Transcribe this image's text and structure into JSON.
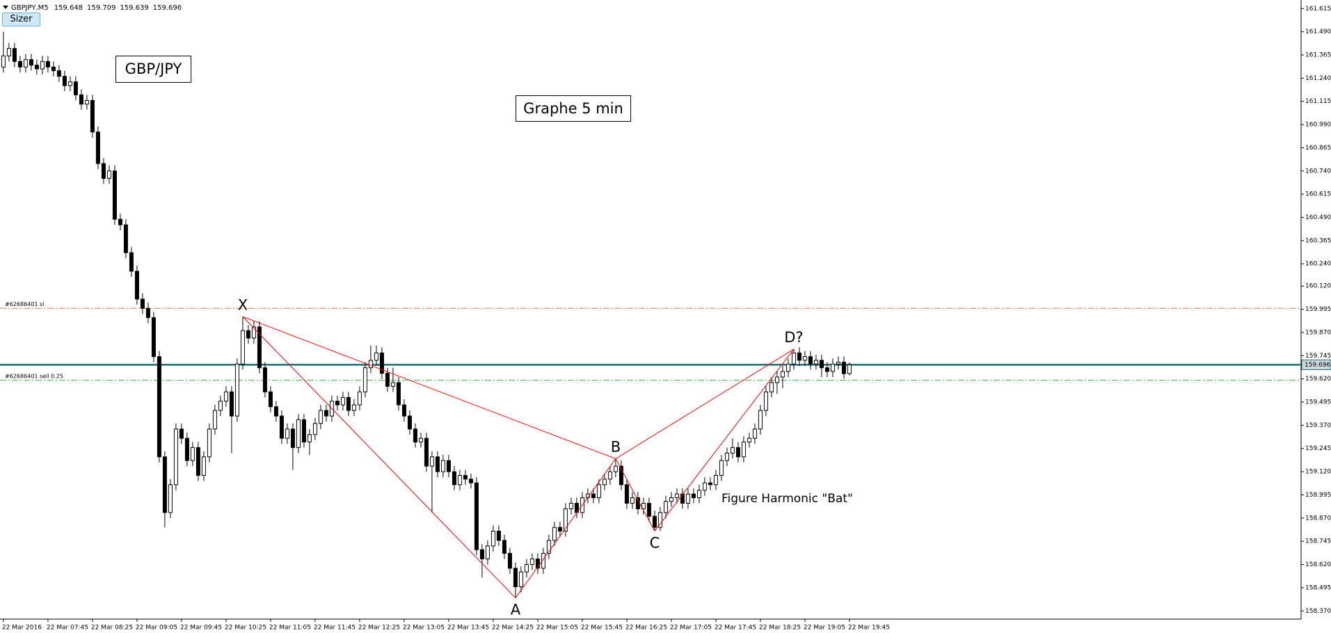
{
  "button": "Sizer",
  "chart_data": {
    "type": "candlestick",
    "symbol": "GBPJPY,M5",
    "annotations": [
      "GBP/JPY",
      "Graphe 5 min",
      "Figure Harmonic \"Bat\""
    ],
    "up_color": "#ffffff",
    "down_color": "#000000",
    "wick_color": "#000000",
    "current_color": "#1b6f74",
    "ylim": [
      158.326,
      161.661
    ],
    "yticks": [
      161.615,
      {
        "value": 161.49,
        "label": "161.490"
      },
      161.365,
      {
        "value": 161.24,
        "label": "161.240"
      },
      161.115,
      {
        "value": 160.99,
        "label": "160.990"
      },
      160.865,
      {
        "value": 160.74,
        "label": "160.740"
      },
      160.615,
      {
        "value": 160.49,
        "label": "160.490"
      },
      160.365,
      {
        "value": 160.24,
        "label": "160.240"
      },
      {
        "value": 160.12,
        "label": "160.120"
      },
      159.995,
      {
        "value": 159.87,
        "label": "159.870"
      },
      159.745,
      {
        "value": 159.62,
        "label": "159.620"
      },
      159.495,
      {
        "value": 159.37,
        "label": "159.370"
      },
      159.245,
      {
        "value": 159.12,
        "label": "159.120"
      },
      158.995,
      {
        "value": 158.87,
        "label": "158.870"
      },
      158.745,
      {
        "value": 158.62,
        "label": "158.620"
      },
      158.495,
      {
        "value": 158.37,
        "label": "158.370"
      }
    ],
    "categories": [
      "22 Mar 2016",
      null,
      null,
      null,
      null,
      null,
      null,
      null,
      "22 Mar 07:45",
      null,
      null,
      null,
      null,
      null,
      null,
      null,
      "22 Mar 08:25",
      null,
      null,
      null,
      null,
      null,
      null,
      null,
      "22 Mar 09:05",
      null,
      null,
      null,
      null,
      null,
      null,
      null,
      "22 Mar 09:45",
      null,
      null,
      null,
      null,
      null,
      null,
      null,
      "22 Mar 10:25",
      null,
      null,
      null,
      null,
      null,
      null,
      null,
      "22 Mar 11:05",
      null,
      null,
      null,
      null,
      null,
      null,
      null,
      "22 Mar 11:45",
      null,
      null,
      null,
      null,
      null,
      null,
      null,
      "22 Mar 12:25",
      null,
      null,
      null,
      null,
      null,
      null,
      null,
      "22 Mar 13:05",
      null,
      null,
      null,
      null,
      null,
      null,
      null,
      "22 Mar 13:45",
      null,
      null,
      null,
      null,
      null,
      null,
      null,
      "22 Mar 14:25",
      null,
      null,
      null,
      null,
      null,
      null,
      null,
      "22 Mar 15:05",
      null,
      null,
      null,
      null,
      null,
      null,
      null,
      "22 Mar 15:45",
      null,
      null,
      null,
      null,
      null,
      null,
      null,
      "22 Mar 16:25",
      null,
      null,
      null,
      null,
      null,
      null,
      null,
      "22 Mar 17:05",
      null,
      null,
      null,
      null,
      null,
      null,
      null,
      "22 Mar 17:45",
      null,
      null,
      null,
      null,
      null,
      null,
      null,
      "22 Mar 18:25",
      null,
      null,
      null,
      null,
      null,
      null,
      null,
      "22 Mar 19:05",
      null,
      null,
      null,
      null,
      null,
      null,
      null,
      "22 Mar 19:45"
    ],
    "ohlc": [
      [
        161.3,
        161.49,
        161.27,
        161.36
      ],
      [
        161.36,
        161.43,
        161.33,
        161.4
      ],
      [
        161.4,
        161.43,
        161.3,
        161.33
      ],
      [
        161.33,
        161.36,
        161.27,
        161.3
      ],
      [
        161.3,
        161.37,
        161.27,
        161.34
      ],
      [
        161.34,
        161.37,
        161.28,
        161.31
      ],
      [
        161.31,
        161.34,
        161.26,
        161.29
      ],
      [
        161.29,
        161.36,
        161.26,
        161.33
      ],
      [
        161.33,
        161.36,
        161.27,
        161.3
      ],
      [
        161.3,
        161.33,
        161.25,
        161.28
      ],
      [
        161.28,
        161.31,
        161.22,
        161.25
      ],
      [
        161.25,
        161.28,
        161.17,
        161.2
      ],
      [
        161.2,
        161.25,
        161.17,
        161.22
      ],
      [
        161.22,
        161.25,
        161.12,
        161.15
      ],
      [
        161.15,
        161.18,
        161.07,
        161.1
      ],
      [
        161.1,
        161.15,
        161.07,
        161.12
      ],
      [
        161.12,
        161.15,
        160.92,
        160.95
      ],
      [
        160.95,
        160.98,
        160.75,
        160.78
      ],
      [
        160.78,
        160.81,
        160.67,
        160.7
      ],
      [
        160.7,
        160.77,
        160.67,
        160.74
      ],
      [
        160.74,
        160.77,
        160.45,
        160.48
      ],
      [
        160.48,
        160.51,
        160.42,
        160.45
      ],
      [
        160.45,
        160.48,
        160.27,
        160.3
      ],
      [
        160.3,
        160.33,
        160.17,
        160.2
      ],
      [
        160.2,
        160.23,
        160.02,
        160.05
      ],
      [
        160.05,
        160.08,
        159.97,
        160.0
      ],
      [
        160.0,
        160.03,
        159.92,
        159.95
      ],
      [
        159.95,
        159.98,
        159.71,
        159.74
      ],
      [
        159.74,
        159.77,
        159.17,
        159.2
      ],
      [
        159.2,
        159.23,
        158.82,
        158.9
      ],
      [
        158.9,
        159.08,
        158.87,
        159.05
      ],
      [
        159.05,
        159.38,
        159.02,
        159.35
      ],
      [
        159.35,
        159.38,
        159.27,
        159.3
      ],
      [
        159.3,
        159.33,
        159.15,
        159.18
      ],
      [
        159.18,
        159.28,
        159.15,
        159.25
      ],
      [
        159.25,
        159.28,
        159.07,
        159.1
      ],
      [
        159.1,
        159.23,
        159.07,
        159.2
      ],
      [
        159.2,
        159.38,
        159.17,
        159.35
      ],
      [
        159.35,
        159.48,
        159.32,
        159.45
      ],
      [
        159.45,
        159.53,
        159.42,
        159.5
      ],
      [
        159.5,
        159.58,
        159.47,
        159.55
      ],
      [
        159.55,
        159.58,
        159.22,
        159.42
      ],
      [
        159.42,
        159.73,
        159.39,
        159.7
      ],
      [
        159.7,
        159.955,
        159.67,
        159.88
      ],
      [
        159.88,
        159.91,
        159.81,
        159.84
      ],
      [
        159.84,
        159.93,
        159.81,
        159.9
      ],
      [
        159.9,
        159.93,
        159.65,
        159.68
      ],
      [
        159.68,
        159.71,
        159.52,
        159.55
      ],
      [
        159.55,
        159.58,
        159.44,
        159.47
      ],
      [
        159.47,
        159.5,
        159.39,
        159.42
      ],
      [
        159.42,
        159.45,
        159.27,
        159.3
      ],
      [
        159.3,
        159.38,
        159.27,
        159.35
      ],
      [
        159.35,
        159.38,
        159.13,
        159.25
      ],
      [
        159.25,
        159.43,
        159.22,
        159.4
      ],
      [
        159.4,
        159.43,
        159.25,
        159.28
      ],
      [
        159.28,
        159.35,
        159.21,
        159.32
      ],
      [
        159.32,
        159.41,
        159.29,
        159.38
      ],
      [
        159.38,
        159.48,
        159.35,
        159.45
      ],
      [
        159.45,
        159.48,
        159.39,
        159.42
      ],
      [
        159.42,
        159.53,
        159.39,
        159.5
      ],
      [
        159.5,
        159.53,
        159.45,
        159.48
      ],
      [
        159.48,
        159.55,
        159.45,
        159.52
      ],
      [
        159.52,
        159.55,
        159.42,
        159.45
      ],
      [
        159.45,
        159.51,
        159.42,
        159.48
      ],
      [
        159.48,
        159.58,
        159.45,
        159.55
      ],
      [
        159.55,
        159.71,
        159.52,
        159.68
      ],
      [
        159.68,
        159.8,
        159.65,
        159.72
      ],
      [
        159.72,
        159.8,
        159.69,
        159.76
      ],
      [
        159.76,
        159.79,
        159.62,
        159.65
      ],
      [
        159.65,
        159.68,
        159.55,
        159.58
      ],
      [
        159.58,
        159.68,
        159.55,
        159.6
      ],
      [
        159.6,
        159.63,
        159.45,
        159.48
      ],
      [
        159.48,
        159.51,
        159.39,
        159.42
      ],
      [
        159.42,
        159.45,
        159.32,
        159.35
      ],
      [
        159.35,
        159.38,
        159.25,
        159.28
      ],
      [
        159.28,
        159.33,
        159.25,
        159.3
      ],
      [
        159.3,
        159.33,
        159.12,
        159.15
      ],
      [
        159.15,
        159.23,
        158.9,
        159.2
      ],
      [
        159.2,
        159.23,
        159.09,
        159.12
      ],
      [
        159.12,
        159.21,
        159.09,
        159.18
      ],
      [
        159.18,
        159.21,
        159.09,
        159.12
      ],
      [
        159.12,
        159.15,
        159.02,
        159.05
      ],
      [
        159.05,
        159.13,
        159.02,
        159.1
      ],
      [
        159.1,
        159.13,
        159.05,
        159.08
      ],
      [
        159.08,
        159.11,
        159.03,
        159.06
      ],
      [
        159.06,
        159.09,
        158.67,
        158.7
      ],
      [
        158.7,
        158.73,
        158.55,
        158.65
      ],
      [
        158.65,
        158.75,
        158.62,
        158.72
      ],
      [
        158.72,
        158.83,
        158.69,
        158.8
      ],
      [
        158.8,
        158.83,
        158.72,
        158.75
      ],
      [
        158.75,
        158.78,
        158.65,
        158.68
      ],
      [
        158.68,
        158.71,
        158.57,
        158.6
      ],
      [
        158.6,
        158.63,
        158.44,
        158.5
      ],
      [
        158.5,
        158.61,
        158.47,
        158.58
      ],
      [
        158.58,
        158.65,
        158.55,
        158.62
      ],
      [
        158.62,
        158.68,
        158.59,
        158.65
      ],
      [
        158.65,
        158.68,
        158.57,
        158.6
      ],
      [
        158.6,
        158.71,
        158.57,
        158.68
      ],
      [
        158.68,
        158.78,
        158.65,
        158.75
      ],
      [
        158.75,
        158.85,
        158.72,
        158.82
      ],
      [
        158.82,
        158.85,
        158.77,
        158.8
      ],
      [
        158.8,
        158.95,
        158.77,
        158.92
      ],
      [
        158.92,
        158.98,
        158.89,
        158.95
      ],
      [
        158.95,
        158.98,
        158.87,
        158.9
      ],
      [
        158.9,
        159.01,
        158.87,
        158.98
      ],
      [
        158.98,
        159.03,
        158.95,
        159.0
      ],
      [
        159.0,
        159.03,
        158.95,
        158.98
      ],
      [
        158.98,
        159.08,
        158.95,
        159.05
      ],
      [
        159.05,
        159.11,
        159.02,
        159.08
      ],
      [
        159.08,
        159.15,
        159.05,
        159.12
      ],
      [
        159.12,
        159.19,
        159.09,
        159.15
      ],
      [
        159.15,
        159.18,
        159.02,
        159.05
      ],
      [
        159.05,
        159.08,
        158.92,
        158.95
      ],
      [
        158.95,
        159.01,
        158.92,
        158.98
      ],
      [
        158.98,
        159.01,
        158.89,
        158.92
      ],
      [
        158.92,
        158.98,
        158.89,
        158.95
      ],
      [
        158.95,
        158.98,
        158.85,
        158.88
      ],
      [
        158.88,
        158.91,
        158.8,
        158.82
      ],
      [
        158.82,
        158.93,
        158.8,
        158.9
      ],
      [
        158.9,
        158.99,
        158.87,
        158.96
      ],
      [
        158.96,
        159.01,
        158.93,
        158.98
      ],
      [
        158.98,
        159.03,
        158.95,
        159.0
      ],
      [
        159.0,
        159.03,
        158.92,
        158.95
      ],
      [
        158.95,
        159.03,
        158.92,
        159.0
      ],
      [
        159.0,
        159.03,
        158.95,
        158.98
      ],
      [
        158.98,
        159.05,
        158.95,
        159.02
      ],
      [
        159.02,
        159.09,
        158.99,
        159.06
      ],
      [
        159.06,
        159.09,
        159.02,
        159.05
      ],
      [
        159.05,
        159.13,
        159.02,
        159.1
      ],
      [
        159.1,
        159.21,
        159.07,
        159.18
      ],
      [
        159.18,
        159.25,
        159.15,
        159.22
      ],
      [
        159.22,
        159.3,
        159.19,
        159.25
      ],
      [
        159.25,
        159.28,
        159.17,
        159.2
      ],
      [
        159.2,
        159.31,
        159.17,
        159.28
      ],
      [
        159.28,
        159.33,
        159.25,
        159.3
      ],
      [
        159.3,
        159.38,
        159.27,
        159.35
      ],
      [
        159.35,
        159.48,
        159.32,
        159.45
      ],
      [
        159.45,
        159.58,
        159.42,
        159.55
      ],
      [
        159.55,
        159.63,
        159.52,
        159.6
      ],
      [
        159.6,
        159.66,
        159.54,
        159.63
      ],
      [
        159.63,
        159.69,
        159.57,
        159.66
      ],
      [
        159.66,
        159.73,
        159.63,
        159.7
      ],
      [
        159.7,
        159.78,
        159.67,
        159.76
      ],
      [
        159.76,
        159.79,
        159.69,
        159.72
      ],
      [
        159.72,
        159.77,
        159.69,
        159.74
      ],
      [
        159.74,
        159.77,
        159.67,
        159.7
      ],
      [
        159.7,
        159.75,
        159.67,
        159.72
      ],
      [
        159.72,
        159.75,
        159.63,
        159.68
      ],
      [
        159.68,
        159.71,
        159.63,
        159.66
      ],
      [
        159.66,
        159.73,
        159.63,
        159.7
      ],
      [
        159.7,
        159.74,
        159.67,
        159.71
      ],
      [
        159.71,
        159.74,
        159.62,
        159.648
      ],
      [
        159.648,
        159.709,
        159.639,
        159.696
      ]
    ],
    "order_lines": [
      {
        "label": "#62686401 sl",
        "price": 160.0,
        "color": "#e8743b"
      },
      {
        "label": "#62686401 sell 0.25",
        "price": 159.612,
        "color": "#3cb043"
      }
    ],
    "pattern_color": "#ff0000",
    "pattern": [
      {
        "label": "X",
        "candle": 43,
        "price": 159.955
      },
      {
        "label": "A",
        "candle": 92,
        "price": 158.44
      },
      {
        "label": "B",
        "candle": 110,
        "price": 159.19
      },
      {
        "label": "C",
        "candle": 117,
        "price": 158.8
      },
      {
        "label": "D?",
        "candle": 142,
        "price": 159.78
      }
    ]
  }
}
